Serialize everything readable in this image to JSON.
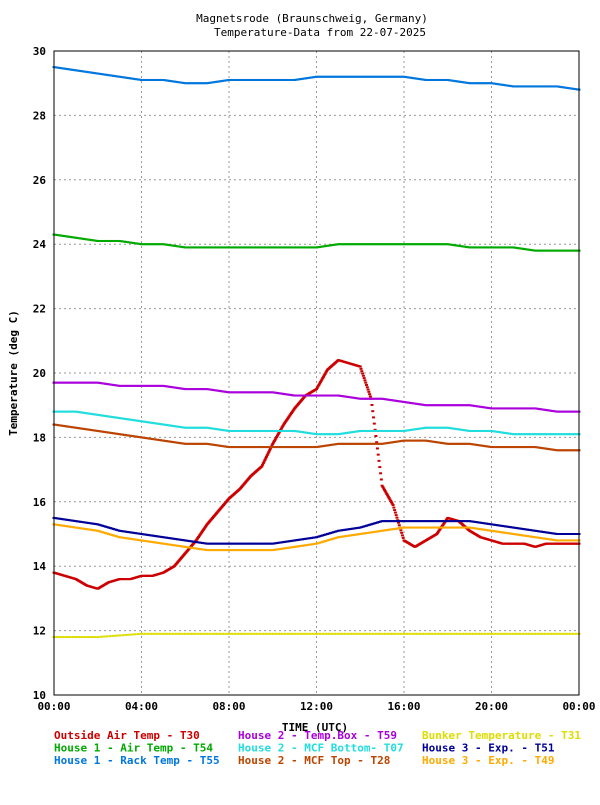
{
  "chart_data": {
    "type": "scatter",
    "title": "Magnetsrode (Braunschweig, Germany)",
    "subtitle": "Temperature-Data from 22-07-2025",
    "xlabel": "TIME (UTC)",
    "ylabel": "Temperature (deg C)",
    "xlim": [
      0,
      24
    ],
    "ylim": [
      10,
      30
    ],
    "grid": true,
    "legend_position": "bottom",
    "x_ticks": [
      {
        "v": 0,
        "label": "00:00"
      },
      {
        "v": 4,
        "label": "04:00"
      },
      {
        "v": 8,
        "label": "08:00"
      },
      {
        "v": 12,
        "label": "12:00"
      },
      {
        "v": 16,
        "label": "16:00"
      },
      {
        "v": 20,
        "label": "20:00"
      },
      {
        "v": 24,
        "label": "00:00"
      }
    ],
    "y_ticks": [
      10,
      12,
      14,
      16,
      18,
      20,
      22,
      24,
      26,
      28,
      30
    ],
    "series": [
      {
        "name": "Outside Air Temp",
        "legend_label": "Outside Air Temp    - T30",
        "color": "#cc0000",
        "x": [
          0,
          0.5,
          1,
          1.5,
          2,
          2.5,
          3,
          3.5,
          4,
          4.5,
          5,
          5.5,
          6,
          6.5,
          7,
          7.5,
          8,
          8.5,
          9,
          9.5,
          10,
          10.5,
          11,
          11.5,
          12,
          12.5,
          13,
          13.5,
          14,
          14.5,
          15,
          15.5,
          16,
          16.5,
          17,
          17.5,
          18,
          18.5,
          19,
          19.5,
          20,
          20.5,
          21,
          21.5,
          22,
          22.5,
          23,
          23.5,
          24
        ],
        "y": [
          13.8,
          13.7,
          13.6,
          13.4,
          13.3,
          13.5,
          13.6,
          13.6,
          13.7,
          13.7,
          13.8,
          14.0,
          14.4,
          14.8,
          15.3,
          15.7,
          16.1,
          16.4,
          16.8,
          17.1,
          17.8,
          18.4,
          18.9,
          19.3,
          19.5,
          20.1,
          20.4,
          20.3,
          20.2,
          19.2,
          16.5,
          15.9,
          14.8,
          14.6,
          14.8,
          15.0,
          15.5,
          15.4,
          15.1,
          14.9,
          14.8,
          14.7,
          14.7,
          14.7,
          14.6,
          14.7,
          14.7,
          14.7,
          14.7
        ]
      },
      {
        "name": "House 1 - Air  Temp",
        "legend_label": "House 1 - Air  Temp - T54",
        "color": "#00aa00",
        "x": [
          0,
          1,
          2,
          3,
          4,
          5,
          6,
          7,
          8,
          9,
          10,
          11,
          12,
          13,
          14,
          15,
          16,
          17,
          18,
          19,
          20,
          21,
          22,
          23,
          24
        ],
        "y": [
          24.3,
          24.2,
          24.1,
          24.1,
          24.0,
          24.0,
          23.9,
          23.9,
          23.9,
          23.9,
          23.9,
          23.9,
          23.9,
          24.0,
          24.0,
          24.0,
          24.0,
          24.0,
          24.0,
          23.9,
          23.9,
          23.9,
          23.8,
          23.8,
          23.8
        ]
      },
      {
        "name": "House 1 - Rack Temp",
        "legend_label": "House 1 - Rack Temp - T55",
        "color": "#0077dd",
        "x": [
          0,
          1,
          2,
          3,
          4,
          5,
          6,
          7,
          8,
          9,
          10,
          11,
          12,
          13,
          14,
          15,
          16,
          17,
          18,
          19,
          20,
          21,
          22,
          23,
          24
        ],
        "y": [
          29.5,
          29.4,
          29.3,
          29.2,
          29.1,
          29.1,
          29.0,
          29.0,
          29.1,
          29.1,
          29.1,
          29.1,
          29.2,
          29.2,
          29.2,
          29.2,
          29.2,
          29.1,
          29.1,
          29.0,
          29.0,
          28.9,
          28.9,
          28.9,
          28.8
        ]
      },
      {
        "name": "House 2 - Temp.Box",
        "legend_label": "House 2 - Temp.Box  - T59",
        "color": "#aa00dd",
        "x": [
          0,
          1,
          2,
          3,
          4,
          5,
          6,
          7,
          8,
          9,
          10,
          11,
          12,
          13,
          14,
          15,
          16,
          17,
          18,
          19,
          20,
          21,
          22,
          23,
          24
        ],
        "y": [
          19.7,
          19.7,
          19.7,
          19.6,
          19.6,
          19.6,
          19.5,
          19.5,
          19.4,
          19.4,
          19.4,
          19.3,
          19.3,
          19.3,
          19.2,
          19.2,
          19.1,
          19.0,
          19.0,
          19.0,
          18.9,
          18.9,
          18.9,
          18.8,
          18.8
        ]
      },
      {
        "name": "House 2 - MCF Bottom",
        "legend_label": "House 2 - MCF Bottom- T07",
        "color": "#22dddd",
        "x": [
          0,
          1,
          2,
          3,
          4,
          5,
          6,
          7,
          8,
          9,
          10,
          11,
          12,
          13,
          14,
          15,
          16,
          17,
          18,
          19,
          20,
          21,
          22,
          23,
          24
        ],
        "y": [
          18.8,
          18.8,
          18.7,
          18.6,
          18.5,
          18.4,
          18.3,
          18.3,
          18.2,
          18.2,
          18.2,
          18.2,
          18.1,
          18.1,
          18.2,
          18.2,
          18.2,
          18.3,
          18.3,
          18.2,
          18.2,
          18.1,
          18.1,
          18.1,
          18.1
        ]
      },
      {
        "name": "House 2 - MCF Top",
        "legend_label": "House 2 - MCF Top   - T28",
        "color": "#bb4400",
        "x": [
          0,
          1,
          2,
          3,
          4,
          5,
          6,
          7,
          8,
          9,
          10,
          11,
          12,
          13,
          14,
          15,
          16,
          17,
          18,
          19,
          20,
          21,
          22,
          23,
          24
        ],
        "y": [
          18.4,
          18.3,
          18.2,
          18.1,
          18.0,
          17.9,
          17.8,
          17.8,
          17.7,
          17.7,
          17.7,
          17.7,
          17.7,
          17.8,
          17.8,
          17.8,
          17.9,
          17.9,
          17.8,
          17.8,
          17.7,
          17.7,
          17.7,
          17.6,
          17.6
        ]
      },
      {
        "name": "Bunker Temperature",
        "legend_label": "Bunker Temperature  - T31",
        "color": "#dddd00",
        "x": [
          0,
          2,
          4,
          6,
          8,
          10,
          12,
          14,
          16,
          18,
          20,
          22,
          24
        ],
        "y": [
          11.8,
          11.8,
          11.9,
          11.9,
          11.9,
          11.9,
          11.9,
          11.9,
          11.9,
          11.9,
          11.9,
          11.9,
          11.9
        ]
      },
      {
        "name": "House 3 - Exp.",
        "legend_label": "House 3 - Exp.      - T51",
        "color": "#000099",
        "x": [
          0,
          1,
          2,
          3,
          4,
          5,
          6,
          7,
          8,
          9,
          10,
          11,
          12,
          13,
          14,
          15,
          16,
          17,
          18,
          19,
          20,
          21,
          22,
          23,
          24
        ],
        "y": [
          15.5,
          15.4,
          15.3,
          15.1,
          15.0,
          14.9,
          14.8,
          14.7,
          14.7,
          14.7,
          14.7,
          14.8,
          14.9,
          15.1,
          15.2,
          15.4,
          15.4,
          15.4,
          15.4,
          15.4,
          15.3,
          15.2,
          15.1,
          15.0,
          15.0
        ]
      },
      {
        "name": "House 3 - Exp.",
        "legend_label": "House 3 - Exp.      - T49",
        "color": "#ffaa00",
        "x": [
          0,
          1,
          2,
          3,
          4,
          5,
          6,
          7,
          8,
          9,
          10,
          11,
          12,
          13,
          14,
          15,
          16,
          17,
          18,
          19,
          20,
          21,
          22,
          23,
          24
        ],
        "y": [
          15.3,
          15.2,
          15.1,
          14.9,
          14.8,
          14.7,
          14.6,
          14.5,
          14.5,
          14.5,
          14.5,
          14.6,
          14.7,
          14.9,
          15.0,
          15.1,
          15.2,
          15.2,
          15.2,
          15.2,
          15.1,
          15.0,
          14.9,
          14.8,
          14.8
        ]
      }
    ]
  }
}
